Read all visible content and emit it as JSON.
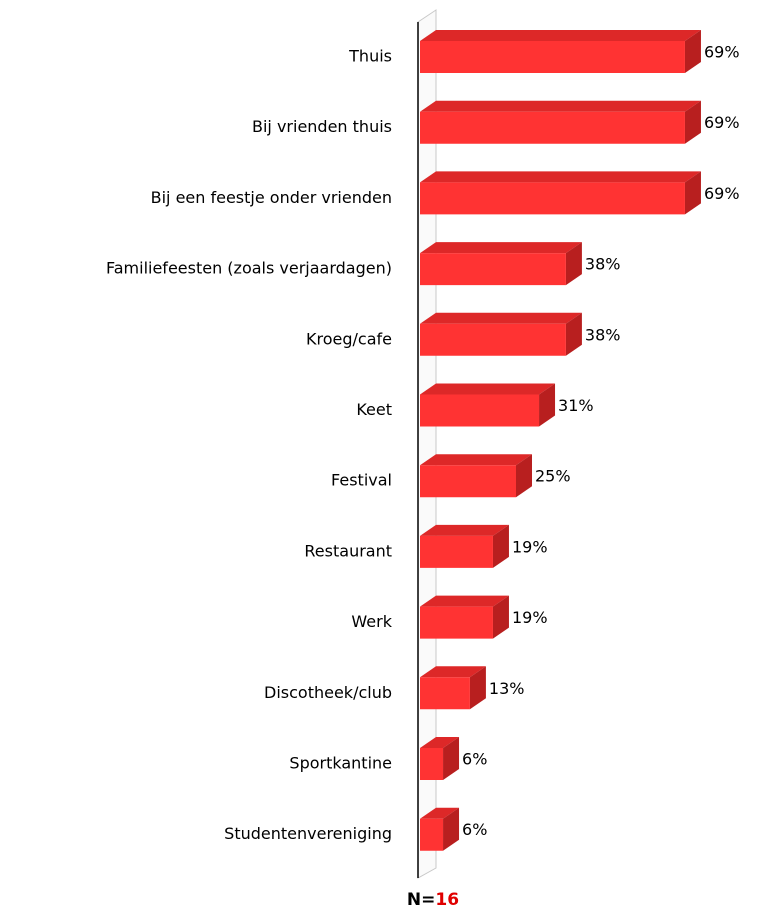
{
  "chart_data": {
    "type": "bar",
    "orientation": "horizontal",
    "categories": [
      "Thuis",
      "Bij vrienden thuis",
      "Bij een feestje onder vrienden",
      "Familiefeesten (zoals verjaardagen)",
      "Kroeg/cafe",
      "Keet",
      "Festival",
      "Restaurant",
      "Werk",
      "Discotheek/club",
      "Sportkantine",
      "Studentenvereniging"
    ],
    "values": [
      69,
      69,
      69,
      38,
      38,
      31,
      25,
      19,
      19,
      13,
      6,
      6
    ],
    "value_labels": [
      "69%",
      "69%",
      "69%",
      "38%",
      "38%",
      "31%",
      "25%",
      "19%",
      "19%",
      "13%",
      "6%",
      "6%"
    ],
    "color": "#ff3333",
    "xlim": [
      0,
      100
    ],
    "footer": {
      "label": "N=",
      "value": 16,
      "value_color": "#e00000"
    }
  }
}
